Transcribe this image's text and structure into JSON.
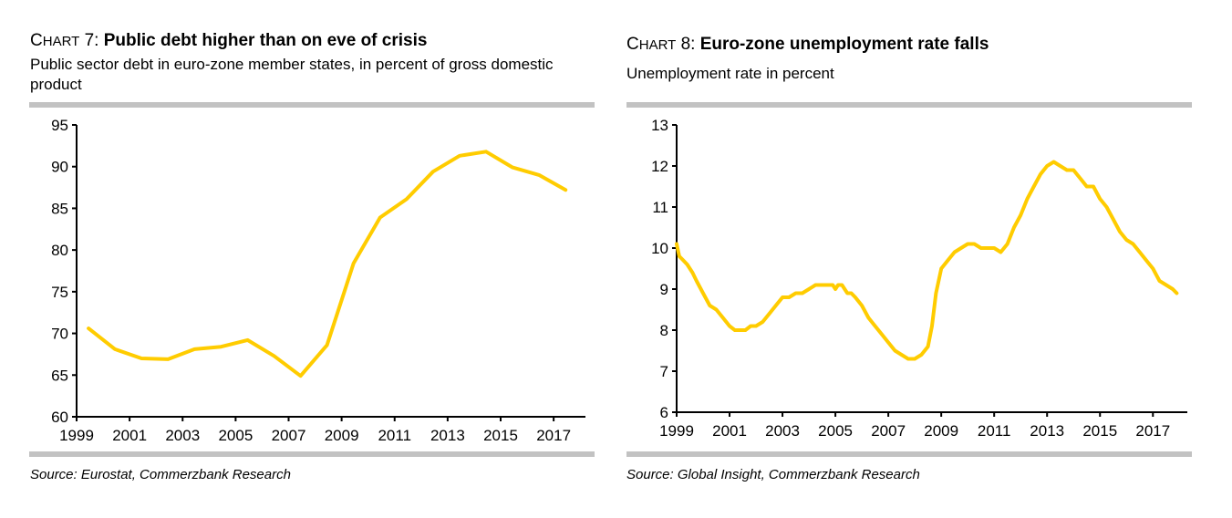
{
  "chart_data": [
    {
      "type": "line",
      "label_prefix": "Chart 7:",
      "title": "Public debt higher than on eve of crisis",
      "subtitle": "Public sector debt in euro-zone member states, in percent of gross domestic product",
      "xlabel": "",
      "ylabel": "",
      "ylim": [
        60,
        95
      ],
      "yticks": [
        "60",
        "65",
        "70",
        "75",
        "80",
        "85",
        "90",
        "95"
      ],
      "xlim": [
        1999,
        2018.2
      ],
      "xticks": [
        "1999",
        "2001",
        "2003",
        "2005",
        "2007",
        "2009",
        "2011",
        "2013",
        "2015",
        "2017"
      ],
      "grid": false,
      "legend": "none",
      "series": [
        {
          "name": "Public sector debt (% of GDP)",
          "color": "#ffcc00",
          "x": [
            1999,
            2000,
            2001,
            2002,
            2003,
            2004,
            2005,
            2006,
            2007,
            2008,
            2009,
            2010,
            2011,
            2012,
            2013,
            2014,
            2015,
            2016,
            2017
          ],
          "values": [
            70.6,
            68.1,
            67.0,
            66.9,
            68.1,
            68.4,
            69.2,
            67.3,
            64.9,
            68.6,
            78.4,
            83.9,
            86.1,
            89.4,
            91.3,
            91.8,
            89.9,
            89.0,
            87.2
          ]
        }
      ],
      "source": "Source: Eurostat, Commerzbank Research"
    },
    {
      "type": "line",
      "label_prefix": "Chart 8:",
      "title": "Euro-zone unemployment rate falls",
      "subtitle": "Unemployment rate in percent",
      "xlabel": "",
      "ylabel": "",
      "ylim": [
        6,
        13
      ],
      "yticks": [
        "6",
        "7",
        "8",
        "9",
        "10",
        "11",
        "12",
        "13"
      ],
      "xlim": [
        1999,
        2018.3
      ],
      "xticks": [
        "1999",
        "2001",
        "2003",
        "2005",
        "2007",
        "2009",
        "2011",
        "2013",
        "2015",
        "2017"
      ],
      "grid": false,
      "legend": "none",
      "series": [
        {
          "name": "Unemployment rate (%)",
          "color": "#ffcc00",
          "x": [
            1999.0,
            1999.1,
            1999.25,
            1999.4,
            1999.6,
            1999.75,
            2000.0,
            2000.25,
            2000.5,
            2000.75,
            2001.0,
            2001.2,
            2001.4,
            2001.6,
            2001.8,
            2002.0,
            2002.25,
            2002.5,
            2002.75,
            2003.0,
            2003.25,
            2003.5,
            2003.75,
            2004.0,
            2004.25,
            2004.5,
            2004.75,
            2004.9,
            2005.0,
            2005.1,
            2005.25,
            2005.45,
            2005.6,
            2005.75,
            2006.0,
            2006.25,
            2006.5,
            2006.75,
            2007.0,
            2007.25,
            2007.5,
            2007.75,
            2008.0,
            2008.25,
            2008.5,
            2008.65,
            2008.8,
            2009.0,
            2009.25,
            2009.5,
            2009.75,
            2010.0,
            2010.25,
            2010.5,
            2010.75,
            2011.0,
            2011.25,
            2011.5,
            2011.75,
            2012.0,
            2012.25,
            2012.5,
            2012.75,
            2013.0,
            2013.25,
            2013.5,
            2013.75,
            2014.0,
            2014.25,
            2014.5,
            2014.75,
            2015.0,
            2015.25,
            2015.5,
            2015.75,
            2016.0,
            2016.25,
            2016.5,
            2016.75,
            2017.0,
            2017.25,
            2017.5,
            2017.75,
            2017.9
          ],
          "values": [
            10.1,
            9.8,
            9.7,
            9.6,
            9.4,
            9.2,
            8.9,
            8.6,
            8.5,
            8.3,
            8.1,
            8.0,
            8.0,
            8.0,
            8.1,
            8.1,
            8.2,
            8.4,
            8.6,
            8.8,
            8.8,
            8.9,
            8.9,
            9.0,
            9.1,
            9.1,
            9.1,
            9.1,
            9.0,
            9.1,
            9.1,
            8.9,
            8.9,
            8.8,
            8.6,
            8.3,
            8.1,
            7.9,
            7.7,
            7.5,
            7.4,
            7.3,
            7.3,
            7.4,
            7.6,
            8.1,
            8.9,
            9.5,
            9.7,
            9.9,
            10.0,
            10.1,
            10.1,
            10.0,
            10.0,
            10.0,
            9.9,
            10.1,
            10.5,
            10.8,
            11.2,
            11.5,
            11.8,
            12.0,
            12.1,
            12.0,
            11.9,
            11.9,
            11.7,
            11.5,
            11.5,
            11.2,
            11.0,
            10.7,
            10.4,
            10.2,
            10.1,
            9.9,
            9.7,
            9.5,
            9.2,
            9.1,
            9.0,
            8.9
          ]
        }
      ],
      "source": "Source: Global Insight, Commerzbank Research"
    }
  ]
}
